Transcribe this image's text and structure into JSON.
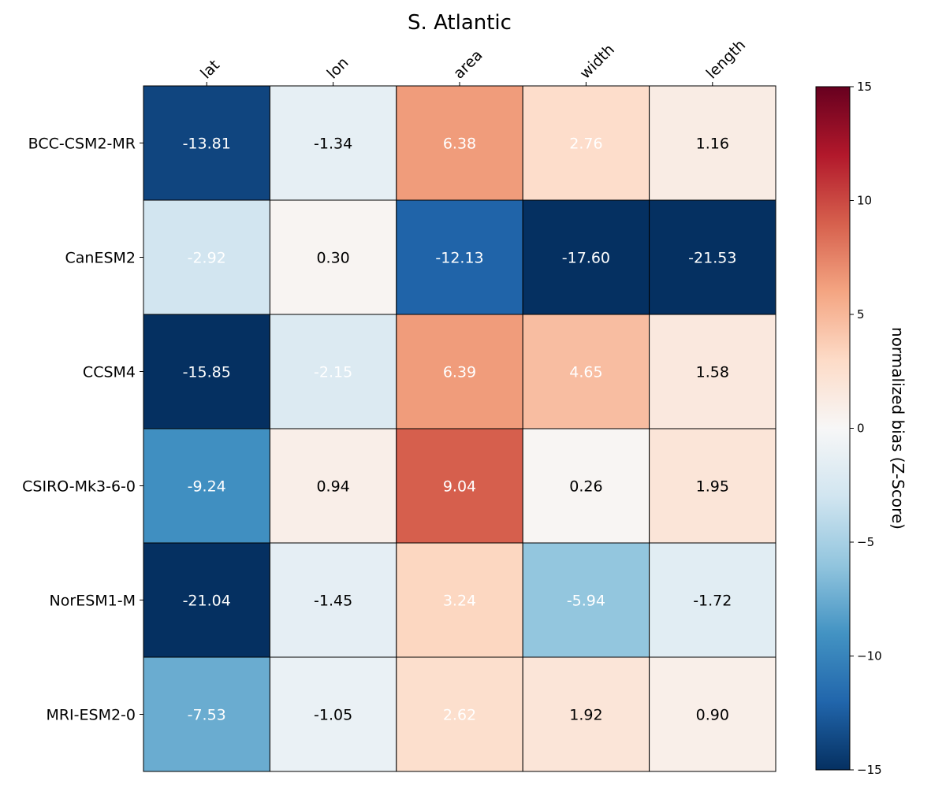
{
  "chart_data": {
    "type": "heatmap",
    "title": "S. Atlantic",
    "columns": [
      "lat",
      "lon",
      "area",
      "width",
      "length"
    ],
    "rows": [
      "BCC-CSM2-MR",
      "CanESM2",
      "CCSM4",
      "CSIRO-Mk3-6-0",
      "NorESM1-M",
      "MRI-ESM2-0"
    ],
    "values": [
      [
        -13.81,
        -1.34,
        6.38,
        2.76,
        1.16
      ],
      [
        -2.92,
        0.3,
        -12.13,
        -17.6,
        -21.53
      ],
      [
        -15.85,
        -2.15,
        6.39,
        4.65,
        1.58
      ],
      [
        -9.24,
        0.94,
        9.04,
        0.26,
        1.95
      ],
      [
        -21.04,
        -1.45,
        3.24,
        -5.94,
        -1.72
      ],
      [
        -7.53,
        -1.05,
        2.62,
        1.92,
        0.9
      ]
    ],
    "value_labels": [
      [
        "-13.81",
        "-1.34",
        "6.38",
        "2.76",
        "1.16"
      ],
      [
        "-2.92",
        "0.30",
        "-12.13",
        "-17.60",
        "-21.53"
      ],
      [
        "-15.85",
        "-2.15",
        "6.39",
        "4.65",
        "1.58"
      ],
      [
        "-9.24",
        "0.94",
        "9.04",
        "0.26",
        "1.95"
      ],
      [
        "-21.04",
        "-1.45",
        "3.24",
        "-5.94",
        "-1.72"
      ],
      [
        "-7.53",
        "-1.05",
        "2.62",
        "1.92",
        "0.90"
      ]
    ],
    "label_colors": [
      [
        "white",
        "black",
        "white",
        "white",
        "black"
      ],
      [
        "white",
        "black",
        "white",
        "white",
        "white"
      ],
      [
        "white",
        "white",
        "white",
        "white",
        "black"
      ],
      [
        "white",
        "black",
        "white",
        "black",
        "black"
      ],
      [
        "white",
        "black",
        "white",
        "white",
        "black"
      ],
      [
        "white",
        "black",
        "white",
        "black",
        "black"
      ]
    ],
    "colormap": "RdBu_r",
    "color_range": [
      -15,
      15
    ],
    "colorbar": {
      "label": "normalized bias (Z-Score)",
      "ticks": [
        15,
        10,
        5,
        0,
        -5,
        -10,
        -15
      ],
      "tick_labels": [
        "15",
        "10",
        "5",
        "0",
        "−5",
        "−10",
        "−15"
      ]
    },
    "colormap_stops": [
      "#053061",
      "#2166ac",
      "#4393c3",
      "#92c5de",
      "#d1e5f0",
      "#f7f7f7",
      "#fddbc7",
      "#f4a582",
      "#d6604d",
      "#b2182b",
      "#67001f"
    ]
  }
}
